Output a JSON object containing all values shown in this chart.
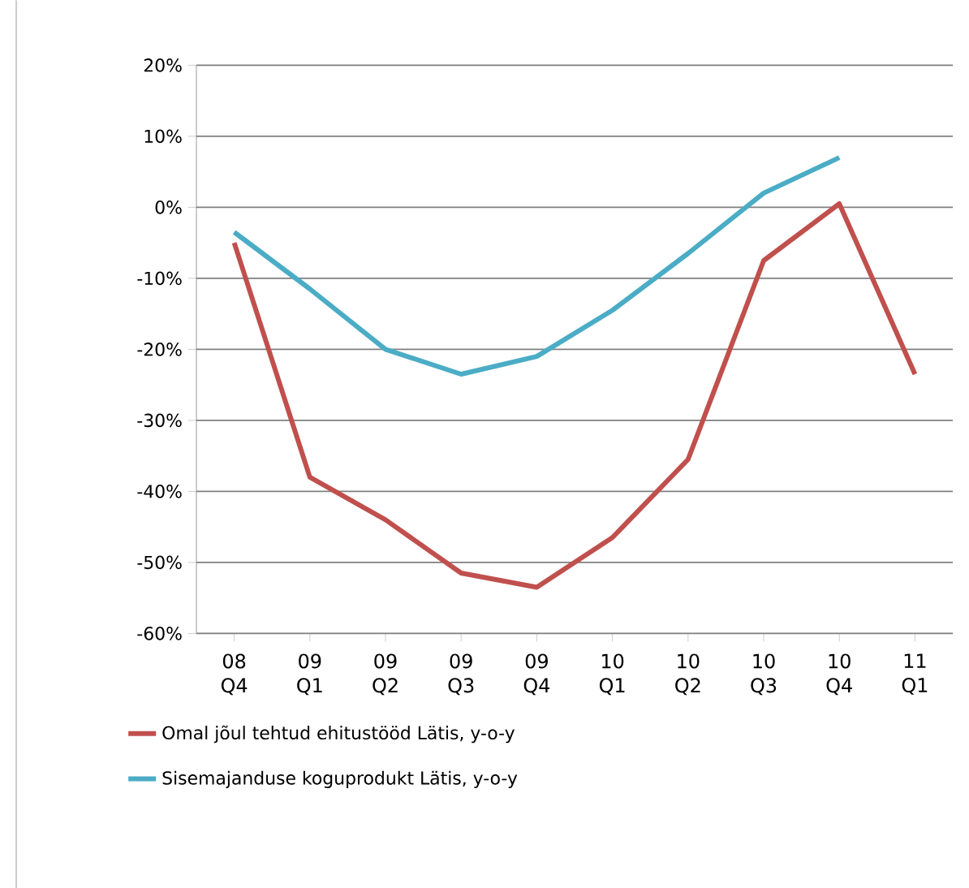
{
  "chart_data": {
    "type": "line",
    "categories": [
      "08 Q4",
      "09 Q1",
      "09 Q2",
      "09 Q3",
      "09 Q4",
      "10 Q1",
      "10 Q2",
      "10 Q3",
      "10 Q4",
      "11 Q1"
    ],
    "series": [
      {
        "name": "Omal jõul tehtud ehitustööd Lätis, y-o-y",
        "color": "#c0504d",
        "values": [
          -5,
          -38,
          -44,
          -51.5,
          -53.5,
          -46.5,
          -35.5,
          -7.5,
          0.5,
          -23.5
        ]
      },
      {
        "name": "Sisemajanduse koguprodukt Lätis, y-o-y",
        "color": "#4bacc6",
        "values": [
          -3.5,
          -11.5,
          -20,
          -23.5,
          -21,
          -14.5,
          -6.5,
          2,
          7,
          null
        ]
      }
    ],
    "ylim": [
      -60,
      20
    ],
    "yticks": [
      {
        "value": -60,
        "label": "-60%"
      },
      {
        "value": -50,
        "label": "-50%"
      },
      {
        "value": -40,
        "label": "-40%"
      },
      {
        "value": -30,
        "label": "-30%"
      },
      {
        "value": -20,
        "label": "-20%"
      },
      {
        "value": -10,
        "label": "-10%"
      },
      {
        "value": 0,
        "label": "0%"
      },
      {
        "value": 10,
        "label": "10%"
      },
      {
        "value": 20,
        "label": "20%"
      }
    ],
    "grid": "y",
    "legend": "bottom",
    "marker": "none",
    "line_style": "solid"
  }
}
